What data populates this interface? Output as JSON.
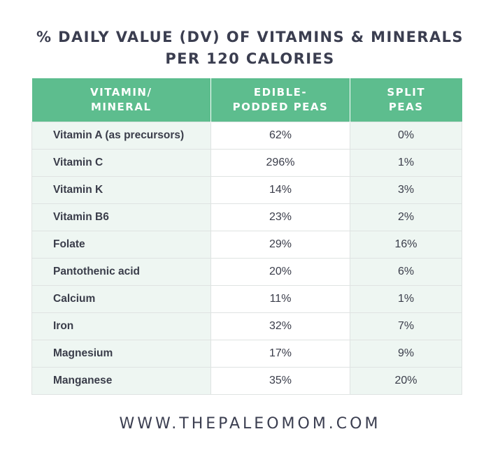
{
  "title": {
    "line1": "% DAILY VALUE (DV) OF VITAMINS & MINERALS",
    "line2": "PER 120 CALORIES"
  },
  "columns": [
    {
      "line1": "VITAMIN/",
      "line2": "MINERAL"
    },
    {
      "line1": "EDIBLE-",
      "line2": "PODDED PEAS"
    },
    {
      "line1": "SPLIT",
      "line2": "PEAS"
    }
  ],
  "rows": [
    {
      "name": "Vitamin A (as precursors)",
      "edible": "62%",
      "split": "0%"
    },
    {
      "name": "Vitamin C",
      "edible": "296%",
      "split": "1%"
    },
    {
      "name": "Vitamin K",
      "edible": "14%",
      "split": "3%"
    },
    {
      "name": "Vitamin B6",
      "edible": "23%",
      "split": "2%"
    },
    {
      "name": "Folate",
      "edible": "29%",
      "split": "16%"
    },
    {
      "name": "Pantothenic acid",
      "edible": "20%",
      "split": "6%"
    },
    {
      "name": "Calcium",
      "edible": "11%",
      "split": "1%"
    },
    {
      "name": "Iron",
      "edible": "32%",
      "split": "7%"
    },
    {
      "name": "Magnesium",
      "edible": "17%",
      "split": "9%"
    },
    {
      "name": "Manganese",
      "edible": "35%",
      "split": "20%"
    }
  ],
  "footer": "WWW.THEPALEOMOM.COM",
  "colors": {
    "header_bg": "#5dbd8e",
    "row_tint": "#eef6f2",
    "text": "#3a3d4a"
  },
  "chart_data": {
    "type": "table",
    "title": "% DAILY VALUE (DV) OF VITAMINS & MINERALS PER 120 CALORIES",
    "categories": [
      "Vitamin A (as precursors)",
      "Vitamin C",
      "Vitamin K",
      "Vitamin B6",
      "Folate",
      "Pantothenic acid",
      "Calcium",
      "Iron",
      "Magnesium",
      "Manganese"
    ],
    "series": [
      {
        "name": "EDIBLE-PODDED PEAS",
        "values": [
          62,
          296,
          14,
          23,
          29,
          20,
          11,
          32,
          17,
          35
        ]
      },
      {
        "name": "SPLIT PEAS",
        "values": [
          0,
          1,
          3,
          2,
          16,
          6,
          1,
          7,
          9,
          20
        ]
      }
    ]
  }
}
